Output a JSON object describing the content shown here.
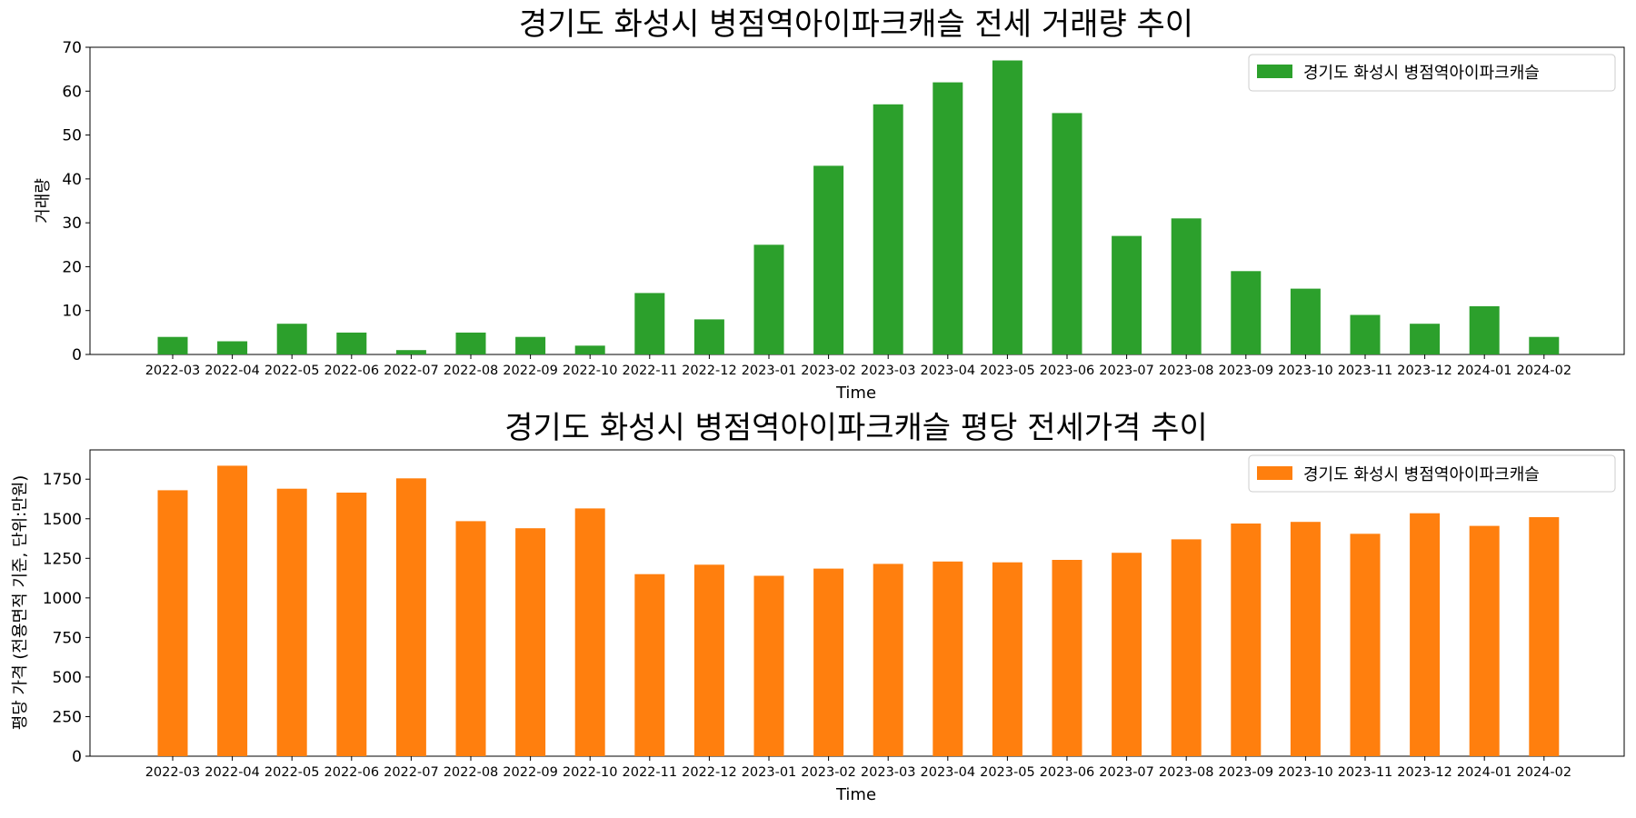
{
  "chart_data": [
    {
      "type": "bar",
      "title": "경기도 화성시 병점역아이파크캐슬 전세 거래량 추이",
      "xlabel": "Time",
      "ylabel": "거래량",
      "ylim": [
        0,
        70
      ],
      "yticks": [
        0,
        10,
        20,
        30,
        40,
        50,
        60,
        70
      ],
      "legend_position": "top-right",
      "grid": false,
      "color": "#2ca02c",
      "categories": [
        "2022-03",
        "2022-04",
        "2022-05",
        "2022-06",
        "2022-07",
        "2022-08",
        "2022-09",
        "2022-10",
        "2022-11",
        "2022-12",
        "2023-01",
        "2023-02",
        "2023-03",
        "2023-04",
        "2023-05",
        "2023-06",
        "2023-07",
        "2023-08",
        "2023-09",
        "2023-10",
        "2023-11",
        "2023-12",
        "2024-01",
        "2024-02"
      ],
      "series": [
        {
          "name": "경기도 화성시 병점역아이파크캐슬",
          "values": [
            4,
            3,
            7,
            5,
            1,
            5,
            4,
            2,
            14,
            8,
            25,
            43,
            57,
            62,
            67,
            55,
            27,
            31,
            19,
            15,
            9,
            7,
            11,
            4
          ]
        }
      ]
    },
    {
      "type": "bar",
      "title": "경기도 화성시 병점역아이파크캐슬 평당 전세가격 추이",
      "xlabel": "Time",
      "ylabel": "평당 가격 (전용면적 기준, 단위:만원)",
      "ylim": [
        0,
        1935
      ],
      "yticks": [
        0,
        250,
        500,
        750,
        1000,
        1250,
        1500,
        1750
      ],
      "legend_position": "top-right",
      "grid": false,
      "color": "#ff7f0e",
      "categories": [
        "2022-03",
        "2022-04",
        "2022-05",
        "2022-06",
        "2022-07",
        "2022-08",
        "2022-09",
        "2022-10",
        "2022-11",
        "2022-12",
        "2023-01",
        "2023-02",
        "2023-03",
        "2023-04",
        "2023-05",
        "2023-06",
        "2023-07",
        "2023-08",
        "2023-09",
        "2023-10",
        "2023-11",
        "2023-12",
        "2024-01",
        "2024-02"
      ],
      "series": [
        {
          "name": "경기도 화성시 병점역아이파크캐슬",
          "values": [
            1680,
            1835,
            1690,
            1665,
            1755,
            1485,
            1440,
            1565,
            1150,
            1210,
            1140,
            1185,
            1215,
            1230,
            1225,
            1240,
            1285,
            1370,
            1470,
            1480,
            1405,
            1535,
            1455,
            1510
          ]
        }
      ]
    }
  ]
}
